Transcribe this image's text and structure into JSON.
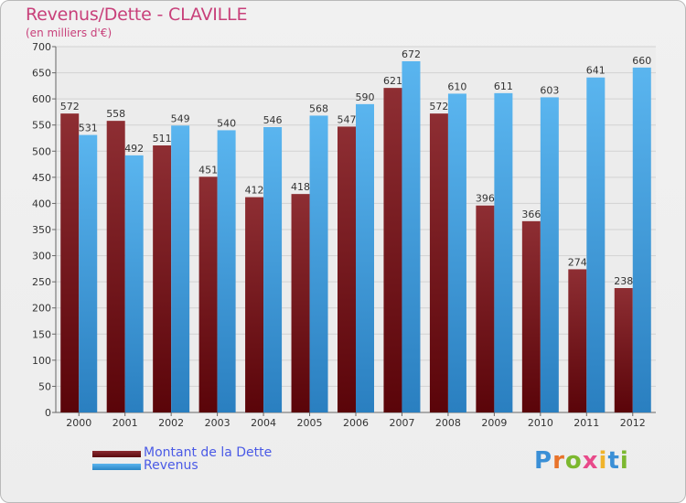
{
  "title": "Revenus/Dette - CLAVILLE",
  "subtitle": "(en milliers d'€)",
  "logo_text": "Proxiti",
  "chart_data": {
    "type": "bar",
    "title": "Revenus/Dette - CLAVILLE",
    "subtitle": "(en milliers d'€)",
    "xlabel": "",
    "ylabel": "",
    "ylim": [
      0,
      700
    ],
    "yticks": [
      0,
      50,
      100,
      150,
      200,
      250,
      300,
      350,
      400,
      450,
      500,
      550,
      600,
      650,
      700
    ],
    "grid": true,
    "legend_position": "bottom-left",
    "categories": [
      "2000",
      "2001",
      "2002",
      "2003",
      "2004",
      "2005",
      "2006",
      "2007",
      "2008",
      "2009",
      "2010",
      "2011",
      "2012"
    ],
    "series": [
      {
        "name": "Montant de la Dette",
        "color": "#7a1c22",
        "values": [
          572,
          558,
          511,
          451,
          412,
          418,
          547,
          621,
          572,
          396,
          366,
          274,
          238
        ]
      },
      {
        "name": "Revenus",
        "color": "#4aa6e6",
        "values": [
          531,
          492,
          549,
          540,
          546,
          568,
          590,
          672,
          610,
          611,
          603,
          641,
          660
        ]
      }
    ]
  }
}
